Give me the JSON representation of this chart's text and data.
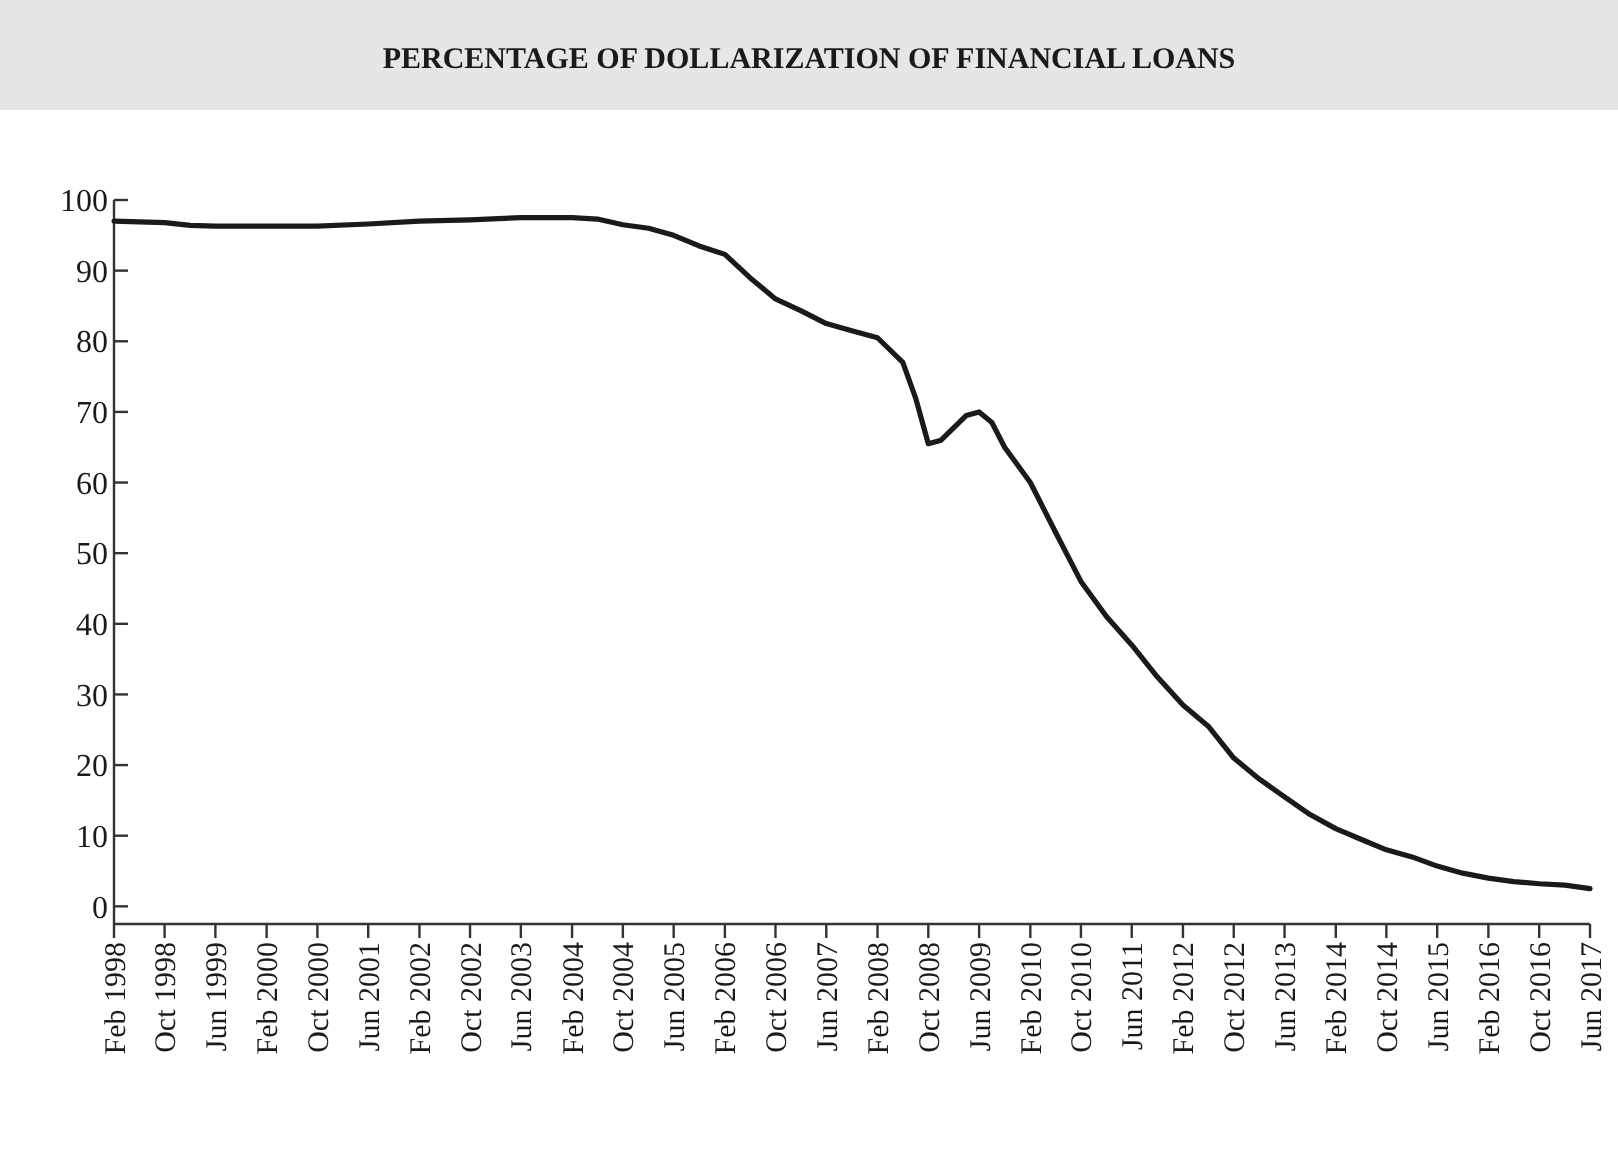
{
  "chart_data": {
    "type": "line",
    "title": "PERCENTAGE OF DOLLARIZATION OF FINANCIAL LOANS",
    "x": [
      "1998-02",
      "1998-06",
      "1998-10",
      "1999-02",
      "1999-06",
      "2000-02",
      "2000-10",
      "2001-06",
      "2002-02",
      "2002-10",
      "2003-06",
      "2004-02",
      "2004-06",
      "2004-10",
      "2005-02",
      "2005-06",
      "2005-10",
      "2006-02",
      "2006-06",
      "2006-10",
      "2007-02",
      "2007-06",
      "2007-10",
      "2008-02",
      "2008-06",
      "2008-08",
      "2008-10",
      "2008-12",
      "2009-04",
      "2009-06",
      "2009-08",
      "2009-10",
      "2010-02",
      "2010-06",
      "2010-10",
      "2011-02",
      "2011-06",
      "2011-10",
      "2012-02",
      "2012-06",
      "2012-10",
      "2013-02",
      "2013-06",
      "2013-10",
      "2014-02",
      "2014-06",
      "2014-10",
      "2015-02",
      "2015-06",
      "2015-10",
      "2016-02",
      "2016-06",
      "2016-10",
      "2017-02",
      "2017-06"
    ],
    "series": [
      {
        "color": "#1a1a1a",
        "values": [
          97,
          96.9,
          96.8,
          96.4,
          96.3,
          96.3,
          96.3,
          96.6,
          97,
          97.2,
          97.5,
          97.5,
          97.3,
          96.5,
          96,
          95,
          93.5,
          92.3,
          89,
          86,
          84.3,
          82.5,
          81.5,
          80.5,
          77,
          72,
          65.5,
          66,
          69.5,
          70,
          68.5,
          65,
          60,
          53,
          46,
          41,
          37,
          32.5,
          28.5,
          25.5,
          21,
          18,
          15.5,
          13,
          11,
          9.5,
          8,
          7,
          5.7,
          4.7,
          4,
          3.5,
          3.2,
          3,
          2.5
        ]
      }
    ],
    "xlim": [
      "1998-02",
      "2017-06"
    ],
    "xticks": [
      {
        "value": "1998-02",
        "label": "Feb 1998"
      },
      {
        "value": "1998-10",
        "label": "Oct 1998"
      },
      {
        "value": "1999-06",
        "label": "Jun 1999"
      },
      {
        "value": "2000-02",
        "label": "Feb 2000"
      },
      {
        "value": "2000-10",
        "label": "Oct 2000"
      },
      {
        "value": "2001-06",
        "label": "Jun 2001"
      },
      {
        "value": "2002-02",
        "label": "Feb 2002"
      },
      {
        "value": "2002-10",
        "label": "Oct 2002"
      },
      {
        "value": "2003-06",
        "label": "Jun 2003"
      },
      {
        "value": "2004-02",
        "label": "Feb 2004"
      },
      {
        "value": "2004-10",
        "label": "Oct 2004"
      },
      {
        "value": "2005-06",
        "label": "Jun 2005"
      },
      {
        "value": "2006-02",
        "label": "Feb 2006"
      },
      {
        "value": "2006-10",
        "label": "Oct 2006"
      },
      {
        "value": "2007-06",
        "label": "Jun 2007"
      },
      {
        "value": "2008-02",
        "label": "Feb 2008"
      },
      {
        "value": "2008-10",
        "label": "Oct 2008"
      },
      {
        "value": "2009-06",
        "label": "Jun 2009"
      },
      {
        "value": "2010-02",
        "label": "Feb 2010"
      },
      {
        "value": "2010-10",
        "label": "Oct 2010"
      },
      {
        "value": "2011-06",
        "label": "Jun 2011"
      },
      {
        "value": "2012-02",
        "label": "Feb 2012"
      },
      {
        "value": "2012-10",
        "label": "Oct 2012"
      },
      {
        "value": "2013-06",
        "label": "Jun 2013"
      },
      {
        "value": "2014-02",
        "label": "Feb 2014"
      },
      {
        "value": "2014-10",
        "label": "Oct 2014"
      },
      {
        "value": "2015-06",
        "label": "Jun 2015"
      },
      {
        "value": "2016-02",
        "label": "Feb 2016"
      },
      {
        "value": "2016-10",
        "label": "Oct 2016"
      },
      {
        "value": "2017-06",
        "label": "Jun 2017"
      }
    ],
    "ylim": [
      -2.5,
      100
    ],
    "yticks": [
      0,
      10,
      20,
      30,
      40,
      50,
      60,
      70,
      80,
      90,
      100
    ],
    "grid": false,
    "marker": "none",
    "line_style": "solid"
  }
}
